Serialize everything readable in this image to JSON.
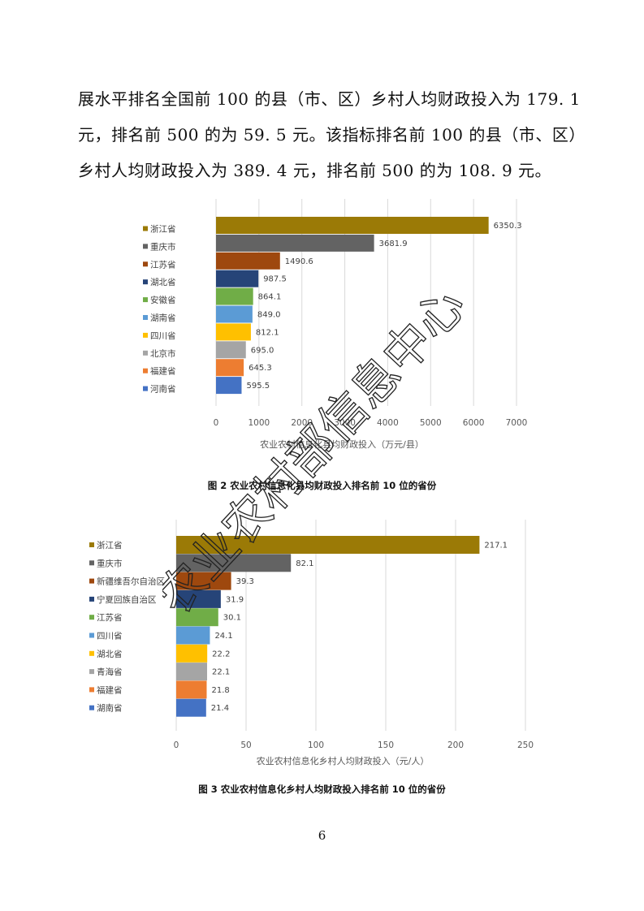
{
  "body_text": {
    "line1": "展水平排名全国前 100 的县（市、区）乡村人均财政投入为 179. 1",
    "line2": "元，排名前 500 的为 59. 5 元。该指标排名前 100 的县（市、区）",
    "line3": "乡村人均财政投入为 389. 4 元，排名前 500 的为 108. 9 元。"
  },
  "watermark": {
    "text": "农业农村部信息中心"
  },
  "chart_data": [
    {
      "type": "bar",
      "orientation": "horizontal",
      "categories": [
        "浙江省",
        "重庆市",
        "江苏省",
        "湖北省",
        "安徽省",
        "湖南省",
        "四川省",
        "北京市",
        "福建省",
        "河南省"
      ],
      "values": [
        6350.3,
        3681.9,
        1490.6,
        987.5,
        864.1,
        849.0,
        812.1,
        695.0,
        645.3,
        595.5
      ],
      "value_labels": [
        "6350.3",
        "3681.9",
        "1490.6",
        "987.5",
        "864.1",
        "849.0",
        "812.1",
        "695.0",
        "645.3",
        "595.5"
      ],
      "colors": [
        "#9b7a06",
        "#636363",
        "#9e480e",
        "#264478",
        "#70ad47",
        "#5b9bd5",
        "#ffc000",
        "#a5a5a5",
        "#ed7d31",
        "#4472c4"
      ],
      "xlabel": "农业农村信息化县均财政投入（万元/县）",
      "xlim": [
        0,
        7000
      ],
      "xticks": [
        0,
        1000,
        2000,
        3000,
        4000,
        5000,
        6000,
        7000
      ],
      "grid": true,
      "legend": "left",
      "caption": "图 2 农业农村信息化县均财政投入排名前 10 位的省份"
    },
    {
      "type": "bar",
      "orientation": "horizontal",
      "categories": [
        "浙江省",
        "重庆市",
        "新疆维吾尔自治区",
        "宁夏回族自治区",
        "江苏省",
        "四川省",
        "湖北省",
        "青海省",
        "福建省",
        "湖南省"
      ],
      "values": [
        217.1,
        82.1,
        39.3,
        31.9,
        30.1,
        24.1,
        22.2,
        22.1,
        21.8,
        21.4
      ],
      "value_labels": [
        "217.1",
        "82.1",
        "39.3",
        "31.9",
        "30.1",
        "24.1",
        "22.2",
        "22.1",
        "21.8",
        "21.4"
      ],
      "colors": [
        "#9b7a06",
        "#636363",
        "#9e480e",
        "#264478",
        "#70ad47",
        "#5b9bd5",
        "#ffc000",
        "#a5a5a5",
        "#ed7d31",
        "#4472c4"
      ],
      "xlabel": "农业农村信息化乡村人均财政投入（元/人）",
      "xlim": [
        0,
        250
      ],
      "xticks": [
        0,
        50,
        100,
        150,
        200,
        250
      ],
      "grid": true,
      "legend": "left",
      "caption": "图 3 农业农村信息化乡村人均财政投入排名前 10 位的省份"
    }
  ],
  "page_number": "6"
}
